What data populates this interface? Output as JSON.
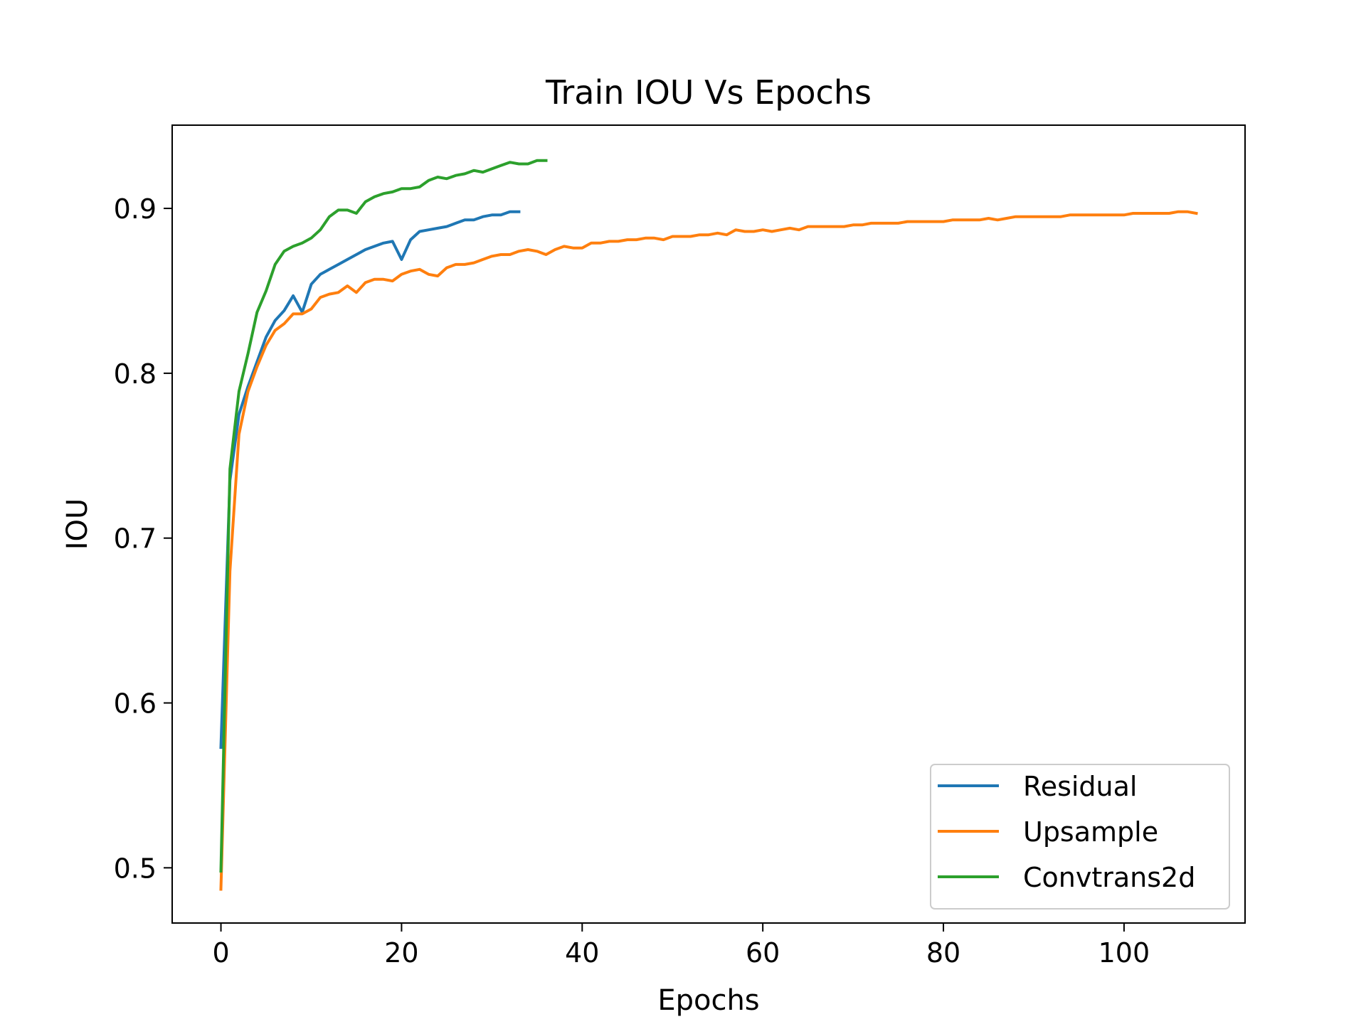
{
  "chart_data": {
    "type": "line",
    "title": "Train IOU Vs Epochs",
    "xlabel": "Epochs",
    "ylabel": "IOU",
    "xlim": [
      -5.4,
      113.4
    ],
    "ylim": [
      0.4665,
      0.9505
    ],
    "xticks": [
      0,
      20,
      40,
      60,
      80,
      100
    ],
    "yticks": [
      0.5,
      0.6,
      0.7,
      0.8,
      0.9
    ],
    "xtick_labels": [
      "0",
      "20",
      "40",
      "60",
      "80",
      "100"
    ],
    "ytick_labels": [
      "0.5",
      "0.6",
      "0.7",
      "0.8",
      "0.9"
    ],
    "grid": false,
    "legend_position": "lower-right",
    "series": [
      {
        "name": "Residual",
        "color": "#1f77b4",
        "x": [
          0,
          1,
          2,
          3,
          4,
          5,
          6,
          7,
          8,
          9,
          10,
          11,
          12,
          13,
          14,
          15,
          16,
          17,
          18,
          19,
          20,
          21,
          22,
          23,
          24,
          25,
          26,
          27,
          28,
          29,
          30,
          31,
          32,
          33
        ],
        "y": [
          0.573,
          0.735,
          0.775,
          0.792,
          0.807,
          0.822,
          0.832,
          0.838,
          0.847,
          0.837,
          0.854,
          0.86,
          0.863,
          0.866,
          0.869,
          0.872,
          0.875,
          0.877,
          0.879,
          0.88,
          0.869,
          0.881,
          0.886,
          0.887,
          0.888,
          0.889,
          0.891,
          0.893,
          0.893,
          0.895,
          0.896,
          0.896,
          0.898,
          0.898
        ]
      },
      {
        "name": "Upsample",
        "color": "#ff7f0e",
        "x": [
          0,
          1,
          2,
          3,
          4,
          5,
          6,
          7,
          8,
          9,
          10,
          11,
          12,
          13,
          14,
          15,
          16,
          17,
          18,
          19,
          20,
          21,
          22,
          23,
          24,
          25,
          26,
          27,
          28,
          29,
          30,
          31,
          32,
          33,
          34,
          35,
          36,
          37,
          38,
          39,
          40,
          41,
          42,
          43,
          44,
          45,
          46,
          47,
          48,
          49,
          50,
          51,
          52,
          53,
          54,
          55,
          56,
          57,
          58,
          59,
          60,
          61,
          62,
          63,
          64,
          65,
          66,
          67,
          68,
          69,
          70,
          71,
          72,
          73,
          74,
          75,
          76,
          77,
          78,
          79,
          80,
          81,
          82,
          83,
          84,
          85,
          86,
          87,
          88,
          89,
          90,
          91,
          92,
          93,
          94,
          95,
          96,
          97,
          98,
          99,
          100,
          101,
          102,
          103,
          104,
          105,
          106,
          107,
          108
        ],
        "y": [
          0.487,
          0.68,
          0.763,
          0.789,
          0.804,
          0.817,
          0.826,
          0.83,
          0.836,
          0.836,
          0.839,
          0.846,
          0.848,
          0.849,
          0.853,
          0.849,
          0.855,
          0.857,
          0.857,
          0.856,
          0.86,
          0.862,
          0.863,
          0.86,
          0.859,
          0.864,
          0.866,
          0.866,
          0.867,
          0.869,
          0.871,
          0.872,
          0.872,
          0.874,
          0.875,
          0.874,
          0.872,
          0.875,
          0.877,
          0.876,
          0.876,
          0.879,
          0.879,
          0.88,
          0.88,
          0.881,
          0.881,
          0.882,
          0.882,
          0.881,
          0.883,
          0.883,
          0.883,
          0.884,
          0.884,
          0.885,
          0.884,
          0.887,
          0.886,
          0.886,
          0.887,
          0.886,
          0.887,
          0.888,
          0.887,
          0.889,
          0.889,
          0.889,
          0.889,
          0.889,
          0.89,
          0.89,
          0.891,
          0.891,
          0.891,
          0.891,
          0.892,
          0.892,
          0.892,
          0.892,
          0.892,
          0.893,
          0.893,
          0.893,
          0.893,
          0.894,
          0.893,
          0.894,
          0.895,
          0.895,
          0.895,
          0.895,
          0.895,
          0.895,
          0.896,
          0.896,
          0.896,
          0.896,
          0.896,
          0.896,
          0.896,
          0.897,
          0.897,
          0.897,
          0.897,
          0.897,
          0.898,
          0.898,
          0.897
        ]
      },
      {
        "name": "Convtrans2d",
        "color": "#2ca02c",
        "x": [
          0,
          1,
          2,
          3,
          4,
          5,
          6,
          7,
          8,
          9,
          10,
          11,
          12,
          13,
          14,
          15,
          16,
          17,
          18,
          19,
          20,
          21,
          22,
          23,
          24,
          25,
          26,
          27,
          28,
          29,
          30,
          31,
          32,
          33,
          34,
          35,
          36
        ],
        "y": [
          0.498,
          0.742,
          0.789,
          0.812,
          0.837,
          0.85,
          0.866,
          0.874,
          0.877,
          0.879,
          0.882,
          0.887,
          0.895,
          0.899,
          0.899,
          0.897,
          0.904,
          0.907,
          0.909,
          0.91,
          0.912,
          0.912,
          0.913,
          0.917,
          0.919,
          0.918,
          0.92,
          0.921,
          0.923,
          0.922,
          0.924,
          0.926,
          0.928,
          0.927,
          0.927,
          0.929,
          0.929
        ]
      }
    ]
  }
}
